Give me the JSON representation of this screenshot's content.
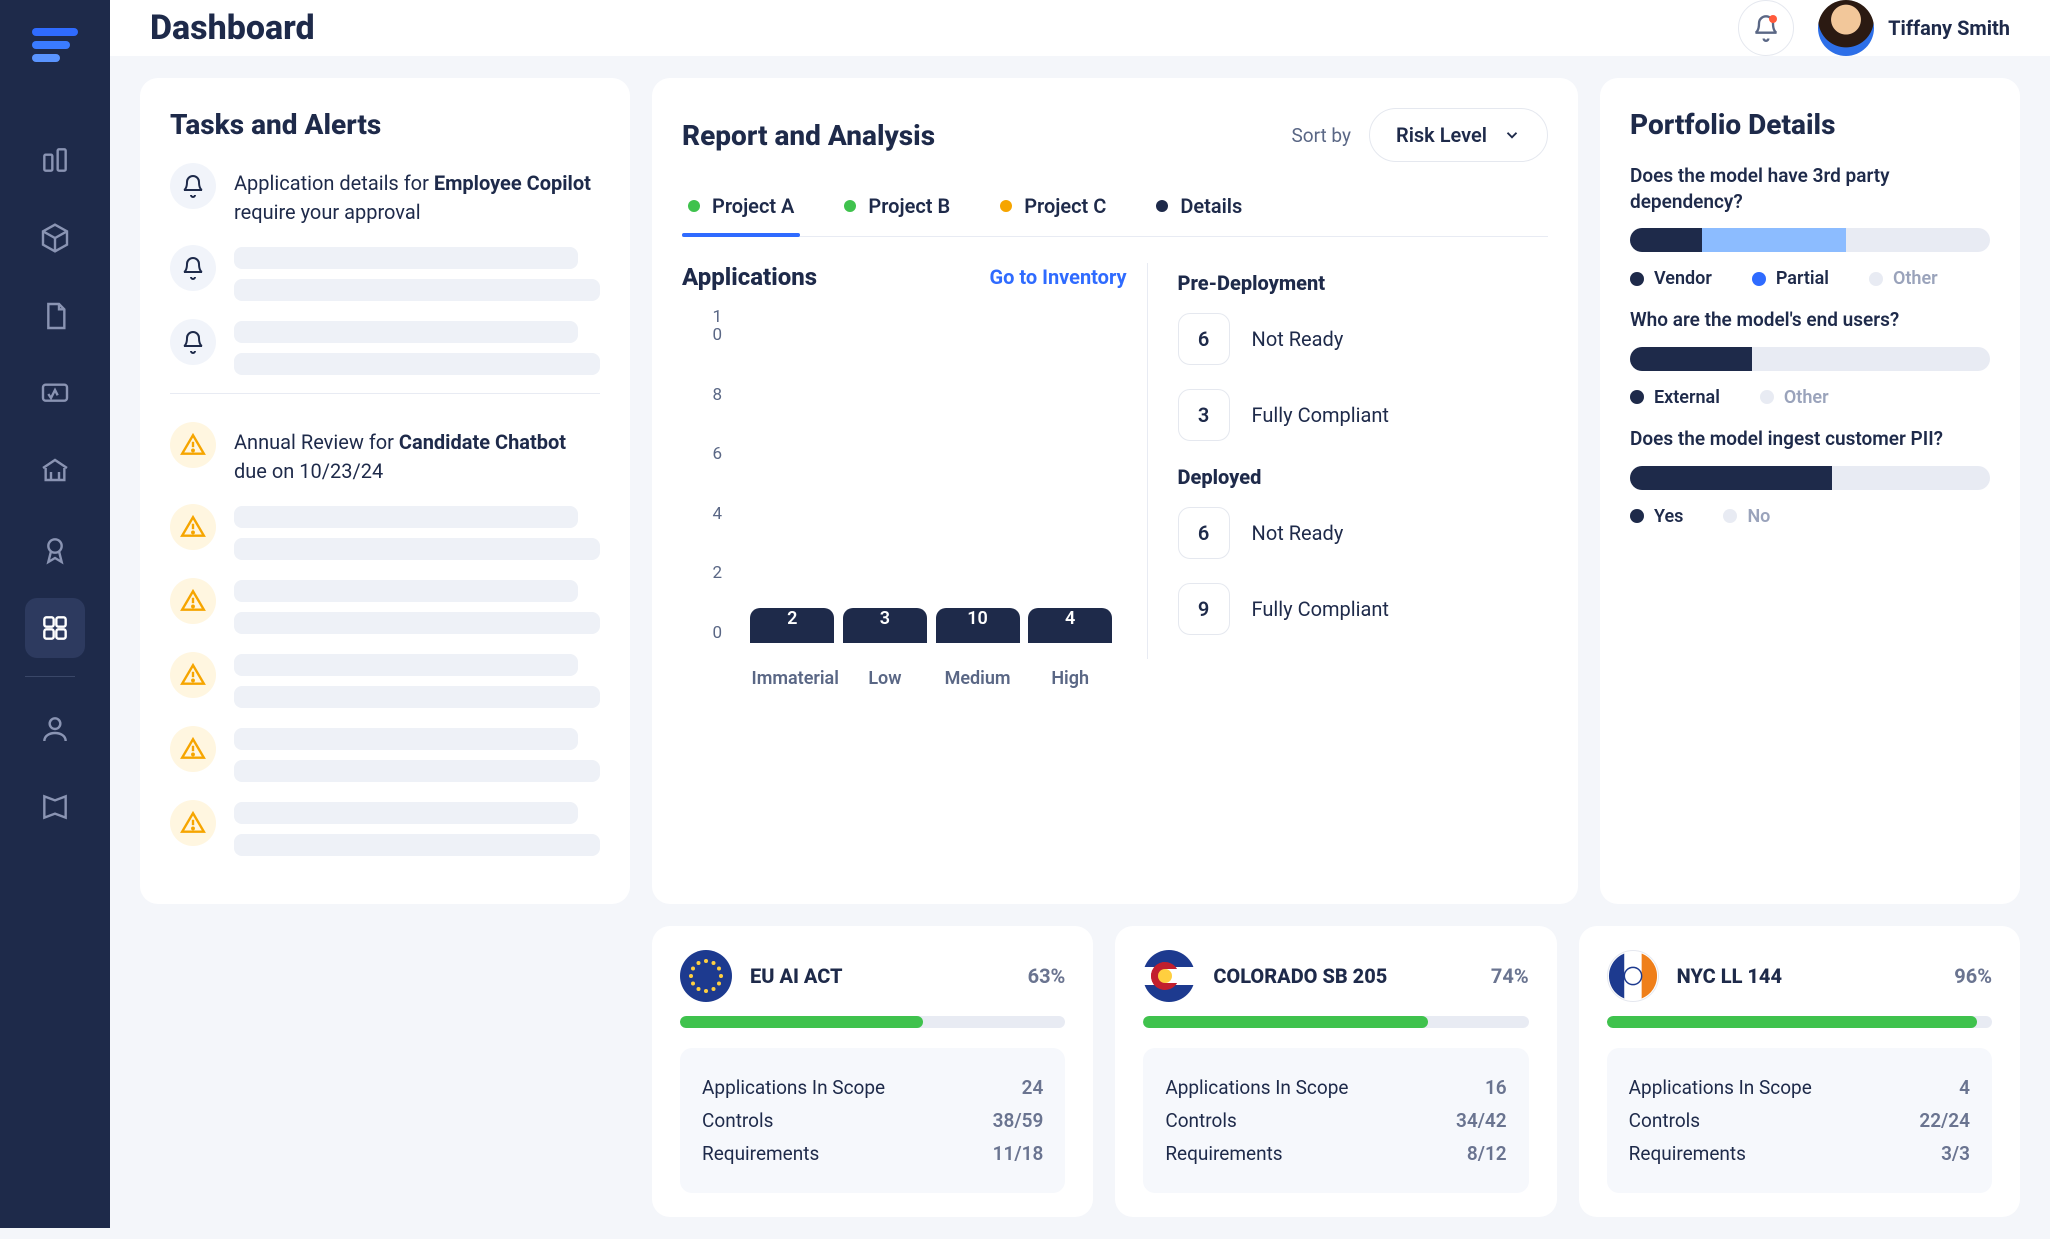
{
  "header": {
    "title": "Dashboard",
    "user_name": "Tiffany Smith"
  },
  "sidebar": {
    "items": [
      {
        "name": "buildings",
        "active": false
      },
      {
        "name": "cube",
        "active": false
      },
      {
        "name": "document",
        "active": false
      },
      {
        "name": "monitor",
        "active": false
      },
      {
        "name": "bank",
        "active": false
      },
      {
        "name": "badge",
        "active": false
      },
      {
        "name": "apps",
        "active": true
      },
      {
        "name": "user",
        "active": false
      },
      {
        "name": "book",
        "active": false
      }
    ]
  },
  "tasks": {
    "title": "Tasks and Alerts",
    "items": [
      {
        "type": "bell",
        "html": "Application details for <b>Employee Copilot</b> require your approval"
      },
      {
        "type": "bell",
        "html": ""
      },
      {
        "type": "bell",
        "html": ""
      }
    ],
    "due": [
      {
        "type": "warn",
        "html": "Annual Review for <b>Candidate Chatbot</b> due on 10/23/24"
      },
      {
        "type": "warn",
        "html": ""
      },
      {
        "type": "warn",
        "html": ""
      },
      {
        "type": "warn",
        "html": ""
      },
      {
        "type": "warn",
        "html": ""
      },
      {
        "type": "warn",
        "html": ""
      }
    ]
  },
  "report": {
    "title": "Report and Analysis",
    "sort_label": "Sort by",
    "sort_value": "Risk Level",
    "tabs": [
      {
        "label": "Project A",
        "color": "#3fc24d",
        "active": true
      },
      {
        "label": "Project B",
        "color": "#3fc24d",
        "active": false
      },
      {
        "label": "Project C",
        "color": "#f6a500",
        "active": false
      },
      {
        "label": "Details",
        "color": "#1e2a4a",
        "active": false
      }
    ],
    "applications": {
      "title": "Applications",
      "link": "Go to Inventory",
      "y_ticks": [
        "10",
        "8",
        "6",
        "4",
        "2",
        "0"
      ],
      "y_max": 10,
      "bars": [
        {
          "label": "Immaterial",
          "value": 2
        },
        {
          "label": "Low",
          "value": 3
        },
        {
          "label": "Medium",
          "value": 10
        },
        {
          "label": "High",
          "value": 4
        }
      ],
      "bar_color": "#1e2a4a"
    },
    "status": {
      "pre_title": "Pre-Deployment",
      "pre": [
        {
          "count": 6,
          "label": "Not Ready"
        },
        {
          "count": 3,
          "label": "Fully Compliant"
        }
      ],
      "dep_title": "Deployed",
      "dep": [
        {
          "count": 6,
          "label": "Not Ready"
        },
        {
          "count": 9,
          "label": "Fully Compliant"
        }
      ]
    }
  },
  "compliance": [
    {
      "flag": "eu",
      "title": "EU AI ACT",
      "pct": "63%",
      "progress": 63,
      "rows": [
        {
          "k": "Applications In Scope",
          "v": "24"
        },
        {
          "k": "Controls",
          "v": "38/59"
        },
        {
          "k": "Requirements",
          "v": "11/18"
        }
      ]
    },
    {
      "flag": "co",
      "title": "COLORADO SB 205",
      "pct": "74%",
      "progress": 74,
      "rows": [
        {
          "k": "Applications In Scope",
          "v": "16"
        },
        {
          "k": "Controls",
          "v": "34/42"
        },
        {
          "k": "Requirements",
          "v": "8/12"
        }
      ]
    },
    {
      "flag": "nyc",
      "title": "NYC LL 144",
      "pct": "96%",
      "progress": 96,
      "rows": [
        {
          "k": "Applications In Scope",
          "v": "4"
        },
        {
          "k": "Controls",
          "v": "22/24"
        },
        {
          "k": "Requirements",
          "v": "3/3"
        }
      ]
    }
  ],
  "portfolio": {
    "title": "Portfolio Details",
    "questions": [
      {
        "q": "Does the model have 3rd party dependency?",
        "segments": [
          {
            "color": "#1e2a4a",
            "pct": 20
          },
          {
            "color": "#8cbcff",
            "pct": 40
          }
        ],
        "legend": [
          {
            "color": "#1e2a4a",
            "label": "Vendor"
          },
          {
            "color": "#2f6bff",
            "label": "Partial"
          },
          {
            "color": "#e8ebf3",
            "label": "Other",
            "muted": true
          }
        ]
      },
      {
        "q": "Who are the model's end users?",
        "segments": [
          {
            "color": "#1e2a4a",
            "pct": 34
          }
        ],
        "legend": [
          {
            "color": "#1e2a4a",
            "label": "External"
          },
          {
            "color": "#e8ebf3",
            "label": "Other",
            "muted": true
          }
        ]
      },
      {
        "q": "Does the model ingest customer PII?",
        "segments": [
          {
            "color": "#1e2a4a",
            "pct": 56
          }
        ],
        "legend": [
          {
            "color": "#1e2a4a",
            "label": "Yes"
          },
          {
            "color": "#e8ebf3",
            "label": "No",
            "muted": true
          }
        ]
      }
    ]
  }
}
